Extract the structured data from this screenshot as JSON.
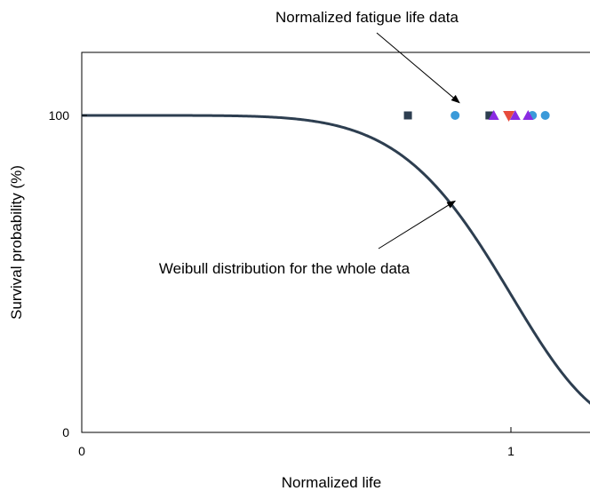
{
  "chart_data": {
    "type": "scatter",
    "xlabel": "Normalized life",
    "ylabel": "Survival probability (%)",
    "xlim": [
      0,
      1.2
    ],
    "ylim": [
      0,
      100
    ],
    "yaxis_top": 120,
    "x_ticks": [
      {
        "value": 0,
        "label": "0"
      },
      {
        "value": 1,
        "label": "1"
      }
    ],
    "y_ticks": [
      {
        "value": 0,
        "label": "0"
      },
      {
        "value": 100,
        "label": "100"
      }
    ],
    "grid": false,
    "annotations": [
      {
        "text": "Normalized fatigue life data",
        "target": {
          "x": 0.88,
          "y": 104
        }
      },
      {
        "text": "Weibull distribution for the whole data",
        "target": {
          "x": 0.87,
          "y": 73
        }
      }
    ],
    "weibull_curve": {
      "shape": 6.2,
      "scale": 1.03,
      "color": "#2d3e50"
    },
    "series": [
      {
        "marker": "square",
        "color": "#2d3e50",
        "x": [
          0.76,
          0.95
        ],
        "y": [
          100,
          100
        ]
      },
      {
        "marker": "circle",
        "color": "#3a9ad9",
        "x": [
          0.87,
          1.05,
          1.08
        ],
        "y": [
          100,
          100,
          100
        ]
      },
      {
        "marker": "triangle-up",
        "color": "#8a2be2",
        "x": [
          0.96,
          1.01,
          1.04
        ],
        "y": [
          100,
          100,
          100
        ]
      },
      {
        "marker": "triangle-down",
        "color": "#e74c3c",
        "x": [
          0.995
        ],
        "y": [
          100
        ]
      }
    ]
  }
}
